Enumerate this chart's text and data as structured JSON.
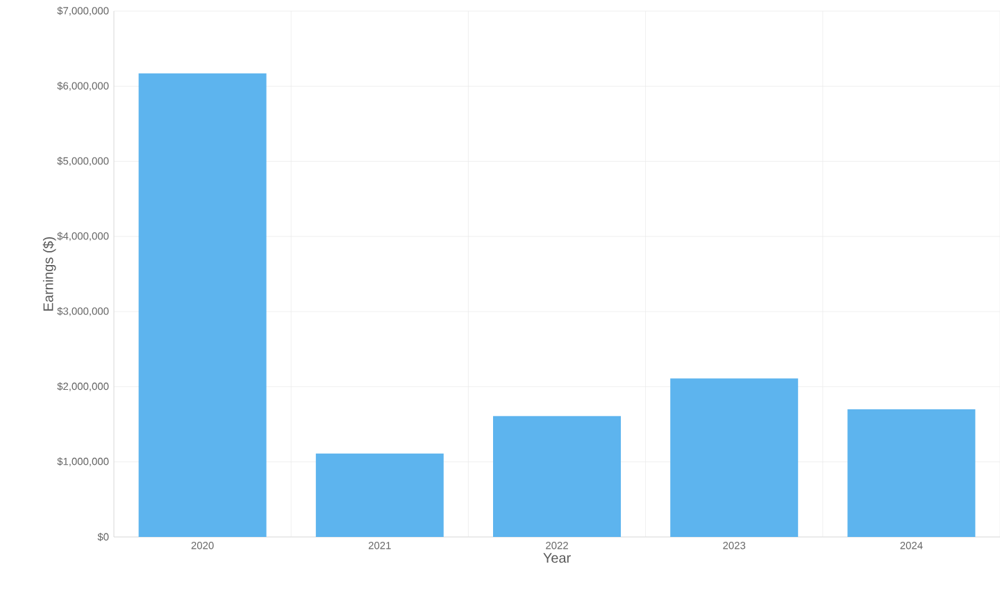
{
  "chart_data": {
    "type": "bar",
    "xlabel": "Year",
    "ylabel": "Earnings ($)",
    "categories": [
      "2020",
      "2021",
      "2022",
      "2023",
      "2024"
    ],
    "values": [
      6170000,
      1110000,
      1610000,
      2110000,
      1700000
    ],
    "color": "#5db4ee",
    "ylim": [
      0,
      7000000
    ],
    "yticks": [
      {
        "value": 0,
        "label": "$0"
      },
      {
        "value": 1000000,
        "label": "$1,000,000"
      },
      {
        "value": 2000000,
        "label": "$2,000,000"
      },
      {
        "value": 3000000,
        "label": "$3,000,000"
      },
      {
        "value": 4000000,
        "label": "$4,000,000"
      },
      {
        "value": 5000000,
        "label": "$5,000,000"
      },
      {
        "value": 6000000,
        "label": "$6,000,000"
      },
      {
        "value": 7000000,
        "label": "$7,000,000"
      }
    ],
    "grid": true
  }
}
